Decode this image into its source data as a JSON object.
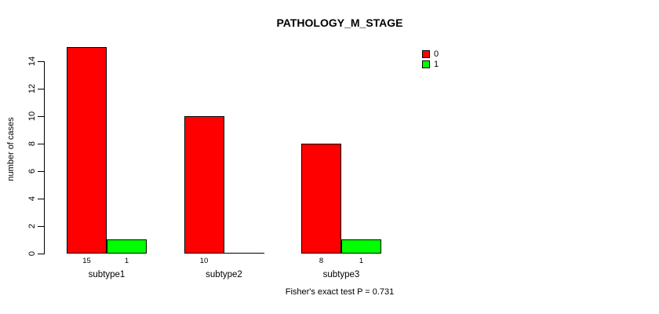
{
  "chart_data": {
    "type": "bar",
    "title": "PATHOLOGY_M_STAGE",
    "ylabel": "number of cases",
    "xlabel": "",
    "categories": [
      "subtype1",
      "subtype2",
      "subtype3"
    ],
    "series": [
      {
        "name": "0",
        "color": "#FF0000",
        "values": [
          15,
          10,
          8
        ]
      },
      {
        "name": "1",
        "color": "#00FF00",
        "values": [
          1,
          0,
          1
        ]
      }
    ],
    "bar_value_labels": [
      [
        "15",
        "1"
      ],
      [
        "10",
        ""
      ],
      [
        "8",
        "1"
      ]
    ],
    "yticks": [
      0,
      2,
      4,
      6,
      8,
      10,
      12,
      14
    ],
    "ylim": [
      0,
      15.4
    ],
    "grid": false,
    "legend_position": "top-right",
    "annotation": "Fisher's exact test P = 0.731",
    "background": "#FFFFFF",
    "axis_color": "#000000"
  }
}
